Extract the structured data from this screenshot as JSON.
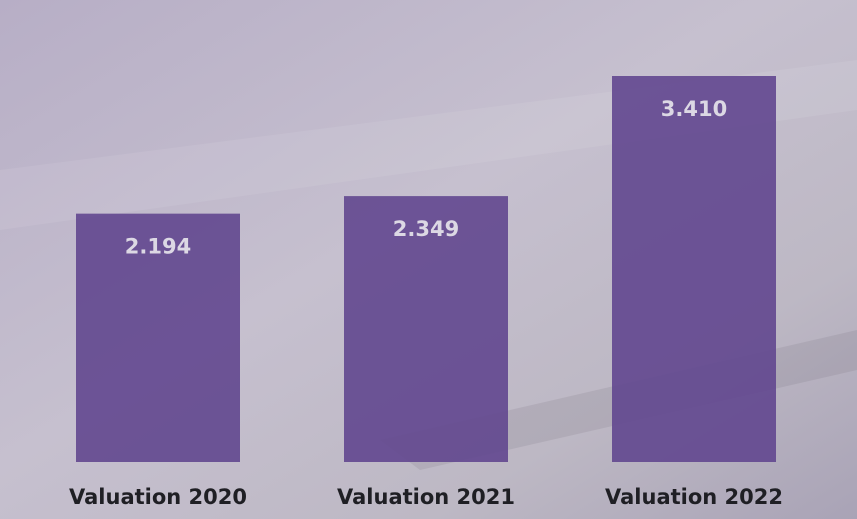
{
  "chart_data": {
    "type": "bar",
    "categories": [
      "Valuation 2020",
      "Valuation 2021",
      "Valuation 2022"
    ],
    "values": [
      2.194,
      2.349,
      3.41
    ],
    "value_labels": [
      "2.194",
      "2.349",
      "3.410"
    ],
    "color": "#62478f"
  }
}
